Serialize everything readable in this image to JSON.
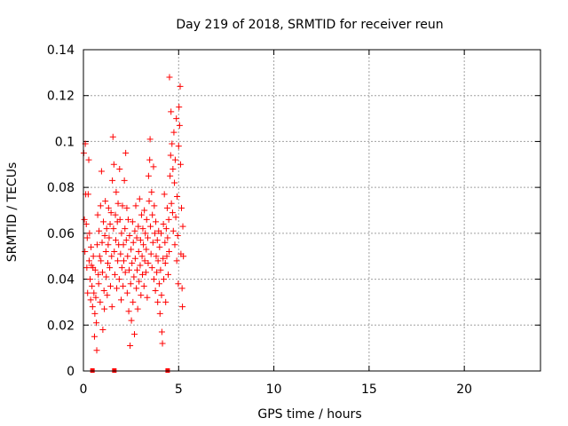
{
  "chart_data": {
    "type": "scatter",
    "title": "Day 219 of 2018, SRMTID for receiver reun",
    "xlabel": "GPS time / hours",
    "ylabel": "SRMTID / TECUs",
    "xlim": [
      0,
      24
    ],
    "ylim": [
      0,
      0.14
    ],
    "xticks": [
      0,
      5,
      10,
      15,
      20
    ],
    "xtick_labels": [
      "0",
      "5",
      "10",
      "15",
      "20"
    ],
    "yticks": [
      0,
      0.02,
      0.04,
      0.06,
      0.08,
      0.1,
      0.12,
      0.14
    ],
    "ytick_labels": [
      "0",
      "0.02",
      "0.04",
      "0.06",
      "0.08",
      "0.1",
      "0.12",
      "0.14"
    ],
    "grid": true,
    "marker": "+",
    "color": "#ff0000",
    "series": [
      {
        "name": "SRMTID",
        "points": [
          [
            0.02,
            0.095
          ],
          [
            0.05,
            0.066
          ],
          [
            0.08,
            0.052
          ],
          [
            0.1,
            0.099
          ],
          [
            0.12,
            0.077
          ],
          [
            0.15,
            0.064
          ],
          [
            0.18,
            0.045
          ],
          [
            0.2,
            0.058
          ],
          [
            0.22,
            0.034
          ],
          [
            0.25,
            0.077
          ],
          [
            0.28,
            0.092
          ],
          [
            0.3,
            0.048
          ],
          [
            0.32,
            0.06
          ],
          [
            0.35,
            0.04
          ],
          [
            0.38,
            0.031
          ],
          [
            0.4,
            0.054
          ],
          [
            0.42,
            0.046
          ],
          [
            0.45,
            0.037
          ],
          [
            0.48,
            0.028
          ],
          [
            0.5,
            0.045
          ],
          [
            0.52,
            0.05
          ],
          [
            0.55,
            0.034
          ],
          [
            0.58,
            0.015
          ],
          [
            0.6,
            0.025
          ],
          [
            0.62,
            0.044
          ],
          [
            0.65,
            0.032
          ],
          [
            0.68,
            0.021
          ],
          [
            0.7,
            0.009
          ],
          [
            0.72,
            0.055
          ],
          [
            0.75,
            0.068
          ],
          [
            0.78,
            0.042
          ],
          [
            0.8,
            0.038
          ],
          [
            0.82,
            0.061
          ],
          [
            0.85,
            0.05
          ],
          [
            0.88,
            0.03
          ],
          [
            0.9,
            0.072
          ],
          [
            0.92,
            0.048
          ],
          [
            0.95,
            0.087
          ],
          [
            0.98,
            0.056
          ],
          [
            1.0,
            0.043
          ],
          [
            1.02,
            0.018
          ],
          [
            1.05,
            0.065
          ],
          [
            1.08,
            0.035
          ],
          [
            1.1,
            0.027
          ],
          [
            1.12,
            0.059
          ],
          [
            1.15,
            0.074
          ],
          [
            1.18,
            0.052
          ],
          [
            1.2,
            0.041
          ],
          [
            1.22,
            0.062
          ],
          [
            1.25,
            0.033
          ],
          [
            1.28,
            0.047
          ],
          [
            1.3,
            0.055
          ],
          [
            1.32,
            0.071
          ],
          [
            1.35,
            0.058
          ],
          [
            1.38,
            0.045
          ],
          [
            1.4,
            0.064
          ],
          [
            1.42,
            0.037
          ],
          [
            1.45,
            0.069
          ],
          [
            1.48,
            0.05
          ],
          [
            1.5,
            0.028
          ],
          [
            1.52,
            0.083
          ],
          [
            1.55,
            0.102
          ],
          [
            1.58,
            0.062
          ],
          [
            1.6,
            0.09
          ],
          [
            1.62,
            0.052
          ],
          [
            1.65,
            0.042
          ],
          [
            1.68,
            0.068
          ],
          [
            1.7,
            0.057
          ],
          [
            1.72,
            0.078
          ],
          [
            1.75,
            0.036
          ],
          [
            1.78,
            0.065
          ],
          [
            1.8,
            0.048
          ],
          [
            1.82,
            0.073
          ],
          [
            1.85,
            0.055
          ],
          [
            1.88,
            0.04
          ],
          [
            1.9,
            0.088
          ],
          [
            1.92,
            0.066
          ],
          [
            1.95,
            0.051
          ],
          [
            1.98,
            0.031
          ],
          [
            2.0,
            0.06
          ],
          [
            2.02,
            0.045
          ],
          [
            2.05,
            0.072
          ],
          [
            2.08,
            0.037
          ],
          [
            2.1,
            0.055
          ],
          [
            2.12,
            0.048
          ],
          [
            2.15,
            0.083
          ],
          [
            2.18,
            0.062
          ],
          [
            2.2,
            0.043
          ],
          [
            2.22,
            0.095
          ],
          [
            2.25,
            0.057
          ],
          [
            2.28,
            0.071
          ],
          [
            2.3,
            0.034
          ],
          [
            2.32,
            0.05
          ],
          [
            2.35,
            0.066
          ],
          [
            2.38,
            0.026
          ],
          [
            2.4,
            0.044
          ],
          [
            2.42,
            0.059
          ],
          [
            2.45,
            0.011
          ],
          [
            2.48,
            0.038
          ],
          [
            2.5,
            0.053
          ],
          [
            2.52,
            0.022
          ],
          [
            2.55,
            0.047
          ],
          [
            2.58,
            0.065
          ],
          [
            2.6,
            0.03
          ],
          [
            2.62,
            0.056
          ],
          [
            2.65,
            0.041
          ],
          [
            2.68,
            0.016
          ],
          [
            2.7,
            0.061
          ],
          [
            2.72,
            0.049
          ],
          [
            2.75,
            0.072
          ],
          [
            2.78,
            0.036
          ],
          [
            2.8,
            0.058
          ],
          [
            2.82,
            0.044
          ],
          [
            2.85,
            0.027
          ],
          [
            2.88,
            0.063
          ],
          [
            2.9,
            0.052
          ],
          [
            2.92,
            0.039
          ],
          [
            2.95,
            0.075
          ],
          [
            2.98,
            0.046
          ],
          [
            3.0,
            0.057
          ],
          [
            3.02,
            0.033
          ],
          [
            3.05,
            0.068
          ],
          [
            3.08,
            0.05
          ],
          [
            3.1,
            0.042
          ],
          [
            3.12,
            0.062
          ],
          [
            3.15,
            0.055
          ],
          [
            3.18,
            0.037
          ],
          [
            3.2,
            0.07
          ],
          [
            3.22,
            0.048
          ],
          [
            3.25,
            0.06
          ],
          [
            3.28,
            0.043
          ],
          [
            3.3,
            0.053
          ],
          [
            3.32,
            0.066
          ],
          [
            3.35,
            0.032
          ],
          [
            3.38,
            0.058
          ],
          [
            3.4,
            0.047
          ],
          [
            3.42,
            0.085
          ],
          [
            3.45,
            0.074
          ],
          [
            3.48,
            0.092
          ],
          [
            3.5,
            0.101
          ],
          [
            3.52,
            0.063
          ],
          [
            3.55,
            0.051
          ],
          [
            3.58,
            0.078
          ],
          [
            3.6,
            0.045
          ],
          [
            3.62,
            0.068
          ],
          [
            3.65,
            0.056
          ],
          [
            3.68,
            0.089
          ],
          [
            3.7,
            0.04
          ],
          [
            3.72,
            0.072
          ],
          [
            3.75,
            0.06
          ],
          [
            3.78,
            0.035
          ],
          [
            3.8,
            0.065
          ],
          [
            3.82,
            0.05
          ],
          [
            3.85,
            0.043
          ],
          [
            3.88,
            0.057
          ],
          [
            3.9,
            0.03
          ],
          [
            3.92,
            0.048
          ],
          [
            3.95,
            0.061
          ],
          [
            3.98,
            0.038
          ],
          [
            4.0,
            0.054
          ],
          [
            4.02,
            0.025
          ],
          [
            4.05,
            0.044
          ],
          [
            4.08,
            0.06
          ],
          [
            4.1,
            0.033
          ],
          [
            4.12,
            0.017
          ],
          [
            4.15,
            0.012
          ],
          [
            4.18,
            0.049
          ],
          [
            4.2,
            0.064
          ],
          [
            4.22,
            0.04
          ],
          [
            4.25,
            0.077
          ],
          [
            4.28,
            0.056
          ],
          [
            4.3,
            0.047
          ],
          [
            4.32,
            0.03
          ],
          [
            4.35,
            0.062
          ],
          [
            4.38,
            0.05
          ],
          [
            4.4,
            0.071
          ],
          [
            4.42,
            0.058
          ],
          [
            4.45,
            0.042
          ],
          [
            4.48,
            0.066
          ],
          [
            4.5,
            0.052
          ],
          [
            4.52,
            0.128
          ],
          [
            4.55,
            0.085
          ],
          [
            4.58,
            0.094
          ],
          [
            4.6,
            0.113
          ],
          [
            4.62,
            0.073
          ],
          [
            4.65,
            0.099
          ],
          [
            4.68,
            0.069
          ],
          [
            4.7,
            0.088
          ],
          [
            4.72,
            0.061
          ],
          [
            4.75,
            0.104
          ],
          [
            4.78,
            0.082
          ],
          [
            4.8,
            0.055
          ],
          [
            4.82,
            0.092
          ],
          [
            4.85,
            0.067
          ],
          [
            4.88,
            0.11
          ],
          [
            4.9,
            0.048
          ],
          [
            4.92,
            0.076
          ],
          [
            4.95,
            0.059
          ],
          [
            4.98,
            0.038
          ],
          [
            5.0,
            0.098
          ],
          [
            5.02,
            0.115
          ],
          [
            5.05,
            0.107
          ],
          [
            5.08,
            0.124
          ],
          [
            5.1,
            0.09
          ],
          [
            5.12,
            0.051
          ],
          [
            5.15,
            0.071
          ],
          [
            5.18,
            0.036
          ],
          [
            5.2,
            0.028
          ],
          [
            5.22,
            0.063
          ],
          [
            5.25,
            0.05
          ]
        ]
      }
    ],
    "bottom_marks": [
      0.45,
      1.6,
      4.4
    ]
  }
}
